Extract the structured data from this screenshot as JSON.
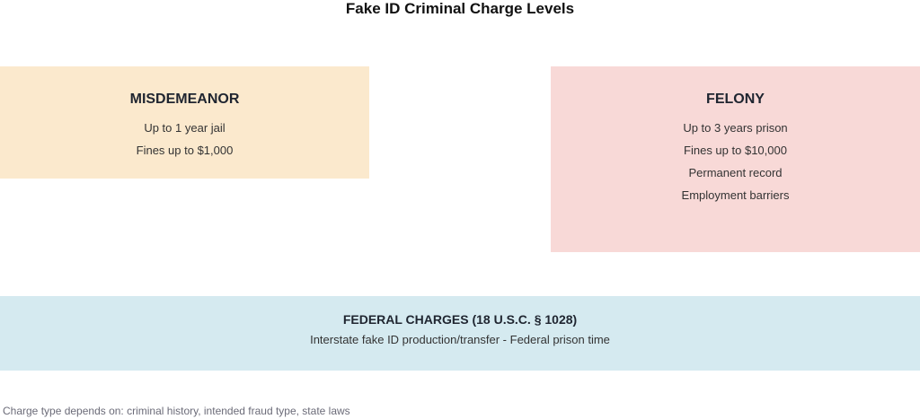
{
  "title": "Fake ID Criminal Charge Levels",
  "boxes": {
    "misdemeanor": {
      "heading": "MISDEMEANOR",
      "lines": [
        "Up to 1 year jail",
        "Fines up to $1,000"
      ],
      "color": "#fbe9cd"
    },
    "felony": {
      "heading": "FELONY",
      "lines": [
        "Up to 3 years prison",
        "Fines up to $10,000",
        "Permanent record",
        "Employment barriers"
      ],
      "color": "#f8d9d7"
    },
    "federal": {
      "heading": "FEDERAL CHARGES (18 U.S.C. § 1028)",
      "lines": [
        "Interstate fake ID production/transfer - Federal prison time"
      ],
      "color": "#d5eaf0"
    }
  },
  "footnote": "Charge type depends on: criminal history, intended fraud type, state laws"
}
